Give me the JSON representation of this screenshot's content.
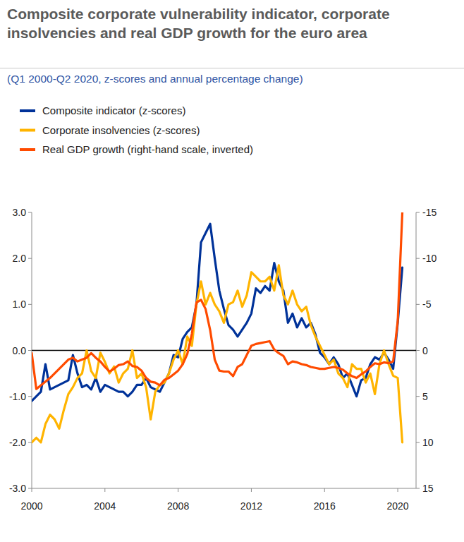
{
  "chart_data": {
    "type": "line",
    "title": "Composite corporate vulnerability indicator, corporate insolvencies and real GDP growth for the euro area",
    "subtitle": "(Q1 2000-Q2 2020, z-scores and annual percentage change)",
    "x": [
      2000,
      2000.25,
      2000.5,
      2000.75,
      2001,
      2001.25,
      2001.5,
      2001.75,
      2002,
      2002.25,
      2002.5,
      2002.75,
      2003,
      2003.25,
      2003.5,
      2003.75,
      2004,
      2004.25,
      2004.5,
      2004.75,
      2005,
      2005.25,
      2005.5,
      2005.75,
      2006,
      2006.25,
      2006.5,
      2006.75,
      2007,
      2007.25,
      2007.5,
      2007.75,
      2008,
      2008.25,
      2008.5,
      2008.75,
      2009,
      2009.25,
      2009.5,
      2009.75,
      2010,
      2010.25,
      2010.5,
      2010.75,
      2011,
      2011.25,
      2011.5,
      2011.75,
      2012,
      2012.25,
      2012.5,
      2012.75,
      2013,
      2013.25,
      2013.5,
      2013.75,
      2014,
      2014.25,
      2014.5,
      2014.75,
      2015,
      2015.25,
      2015.5,
      2015.75,
      2016,
      2016.25,
      2016.5,
      2016.75,
      2017,
      2017.25,
      2017.5,
      2017.75,
      2018,
      2018.25,
      2018.5,
      2018.75,
      2019,
      2019.25,
      2019.5,
      2019.75,
      2020,
      2020.25
    ],
    "xlim": [
      2000,
      2021
    ],
    "xticks": [
      2000,
      2004,
      2008,
      2012,
      2016,
      2020
    ],
    "ylim": [
      -3,
      3
    ],
    "yticks": [
      {
        "value": -3,
        "label": "-3.0"
      },
      {
        "value": -2,
        "label": "-2.0"
      },
      {
        "value": -1,
        "label": "-1.0"
      },
      {
        "value": 0,
        "label": "0.0"
      },
      {
        "value": 1,
        "label": "1.0"
      },
      {
        "value": 2,
        "label": "2.0"
      },
      {
        "value": 3,
        "label": "3.0"
      }
    ],
    "y2lim": [
      15,
      -15
    ],
    "y2ticks": [
      -15,
      -10,
      -5,
      0,
      5,
      10,
      15
    ],
    "legend": "top",
    "grid": false,
    "series": [
      {
        "name": "Composite indicator (z-scores)",
        "color": "#003299",
        "values": [
          -1.1,
          -1.0,
          -0.9,
          -0.3,
          -0.85,
          -0.8,
          -0.75,
          -0.7,
          -0.65,
          -0.1,
          -0.5,
          -0.8,
          -0.75,
          -0.85,
          -0.6,
          -0.9,
          -0.75,
          -0.8,
          -0.85,
          -0.9,
          -0.9,
          -1.0,
          -0.9,
          -0.75,
          -0.75,
          -0.6,
          -0.8,
          -0.85,
          -0.9,
          -0.7,
          -0.5,
          -0.1,
          -0.15,
          0.25,
          0.4,
          0.5,
          1.0,
          2.35,
          2.55,
          2.75,
          2.0,
          1.3,
          0.9,
          0.55,
          0.45,
          0.3,
          0.45,
          0.6,
          0.8,
          1.35,
          1.25,
          1.4,
          1.3,
          1.9,
          1.5,
          1.3,
          0.6,
          0.8,
          0.5,
          0.7,
          0.5,
          0.6,
          0.35,
          -0.05,
          -0.15,
          -0.3,
          -0.15,
          -0.3,
          -0.6,
          -0.5,
          -0.75,
          -1.0,
          -0.65,
          -0.6,
          -0.3,
          -0.15,
          -0.2,
          -0.05,
          -0.2,
          -0.4,
          0.6,
          1.8
        ]
      },
      {
        "name": "Corporate insolvencies (z-scores)",
        "color": "#ffb400",
        "values": [
          -2.0,
          -1.9,
          -2.0,
          -1.6,
          -1.4,
          -1.5,
          -1.7,
          -1.3,
          -0.95,
          -0.8,
          -0.6,
          -0.5,
          0.0,
          -0.45,
          -0.6,
          -0.05,
          -0.25,
          -0.5,
          -0.35,
          -0.7,
          -0.5,
          -0.4,
          0.0,
          -0.6,
          -0.5,
          -0.8,
          -1.5,
          -0.9,
          -0.75,
          -0.7,
          -0.5,
          -0.2,
          0.0,
          -0.3,
          0.3,
          0.1,
          1.0,
          1.5,
          1.0,
          1.25,
          1.0,
          0.85,
          0.6,
          1.0,
          1.05,
          1.3,
          0.95,
          1.2,
          1.7,
          1.6,
          1.5,
          1.5,
          1.6,
          1.3,
          1.85,
          1.2,
          1.0,
          1.3,
          1.0,
          0.85,
          0.95,
          0.55,
          0.3,
          0.1,
          -0.1,
          -0.3,
          -0.2,
          -0.5,
          -0.6,
          -0.8,
          -0.3,
          -0.4,
          -0.4,
          -0.7,
          -0.5,
          -0.95,
          -0.3,
          0.0,
          -0.3,
          -0.55,
          -0.6,
          -2.0
        ]
      },
      {
        "name": "Real GDP growth (right-hand scale, inverted)",
        "color": "#ff4b00",
        "axis": "y2",
        "values": [
          0.3,
          4.2,
          3.8,
          3.4,
          3.0,
          2.5,
          2.0,
          1.5,
          1.0,
          0.8,
          1.2,
          1.0,
          0.8,
          0.3,
          0.8,
          1.2,
          1.8,
          2.3,
          2.0,
          1.6,
          1.5,
          1.2,
          1.7,
          1.8,
          2.2,
          3.0,
          3.4,
          3.5,
          3.8,
          3.2,
          3.0,
          2.6,
          2.2,
          1.5,
          0.4,
          -1.8,
          -5.2,
          -5.5,
          -4.5,
          -2.2,
          1.0,
          2.2,
          2.3,
          2.3,
          2.8,
          1.8,
          1.5,
          0.5,
          -0.5,
          -0.7,
          -0.8,
          -0.9,
          -1.0,
          -0.1,
          0.3,
          0.6,
          1.5,
          1.2,
          1.3,
          1.5,
          1.6,
          1.8,
          1.9,
          2.0,
          2.0,
          1.9,
          1.8,
          1.9,
          2.1,
          2.5,
          2.8,
          3.0,
          2.6,
          2.3,
          1.8,
          1.4,
          1.5,
          1.3,
          1.4,
          1.2,
          -3.2,
          -15.0
        ]
      }
    ]
  }
}
